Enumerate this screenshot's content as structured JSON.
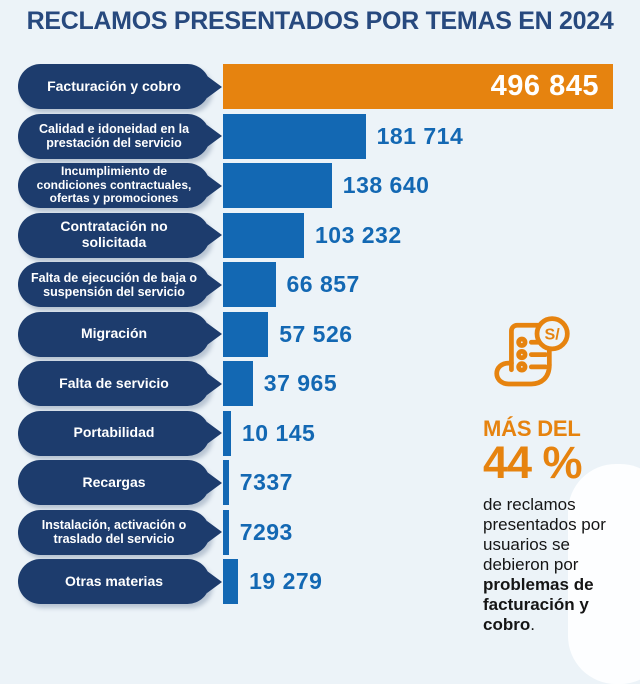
{
  "title": "RECLAMOS PRESENTADOS POR TEMAS EN 2024",
  "chart_data": {
    "type": "bar",
    "orientation": "horizontal",
    "title": "RECLAMOS PRESENTADOS POR TEMAS EN 2024",
    "categories": [
      "Facturación y cobro",
      "Calidad e idoneidad en la prestación del servicio",
      "Incumplimiento de condiciones contractuales, ofertas y promociones",
      "Contratación no solicitada",
      "Falta de ejecución de baja o suspensión del servicio",
      "Migración",
      "Falta de servicio",
      "Portabilidad",
      "Recargas",
      "Instalación, activación o traslado del servicio",
      "Otras materias"
    ],
    "label_lines": [
      [
        "Facturación y cobro"
      ],
      [
        "Calidad e idoneidad en la",
        "prestación del servicio"
      ],
      [
        "Incumplimiento de",
        "condiciones contractuales,",
        "ofertas y promociones"
      ],
      [
        "Contratación no solicitada"
      ],
      [
        "Falta de ejecución de baja o",
        "suspensión del servicio"
      ],
      [
        "Migración"
      ],
      [
        "Falta de servicio"
      ],
      [
        "Portabilidad"
      ],
      [
        "Recargas"
      ],
      [
        "Instalación, activación o",
        "traslado del servicio"
      ],
      [
        "Otras materias"
      ]
    ],
    "values": [
      496845,
      181714,
      138640,
      103232,
      66857,
      57526,
      37965,
      10145,
      7337,
      7293,
      19279
    ],
    "value_labels": [
      "496 845",
      "181 714",
      "138 640",
      "103 232",
      "66 857",
      "57 526",
      "37 965",
      "10 145",
      "7337",
      "7293",
      "19 279"
    ],
    "highlight_index": 0,
    "highlight_color": "#E6830F",
    "bar_color": "#1368B3",
    "xlim": [
      0,
      496845
    ],
    "grid": false,
    "legend": false
  },
  "stat_panel": {
    "icon": "receipt-invoice-icon",
    "currency_badge": "S/",
    "headline_small": "MÁS DEL",
    "headline_big": "44 %",
    "caption_regular": "de reclamos presentados por usuarios se debieron por ",
    "caption_bold": "problemas de facturación y cobro",
    "caption_end": "."
  },
  "colors": {
    "background": "#ECF3F8",
    "title": "#27497E",
    "pill": "#1D3C6D",
    "bar_blue": "#1368B3",
    "orange": "#E6830F",
    "caption_text": "#151515"
  }
}
